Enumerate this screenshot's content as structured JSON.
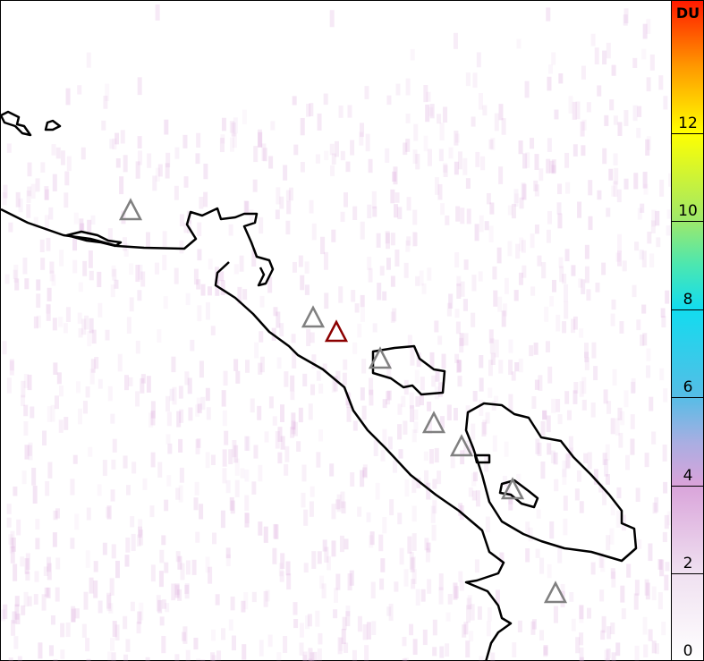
{
  "colorbar": {
    "unit": "DU",
    "range": [
      0,
      15
    ],
    "ticks": [
      "0",
      "2",
      "4",
      "6",
      "8",
      "10",
      "12"
    ],
    "colors": {
      "low": "#ffffff",
      "mid": "#12dcef",
      "high": "#ff1a00"
    }
  },
  "map": {
    "coastline_color": "#000000",
    "background_signal_color": "#d9a3da",
    "volcano_markers": {
      "default_color": "#808080",
      "highlight_color": "#8b0000",
      "count": 8,
      "highlighted_count": 1
    }
  }
}
